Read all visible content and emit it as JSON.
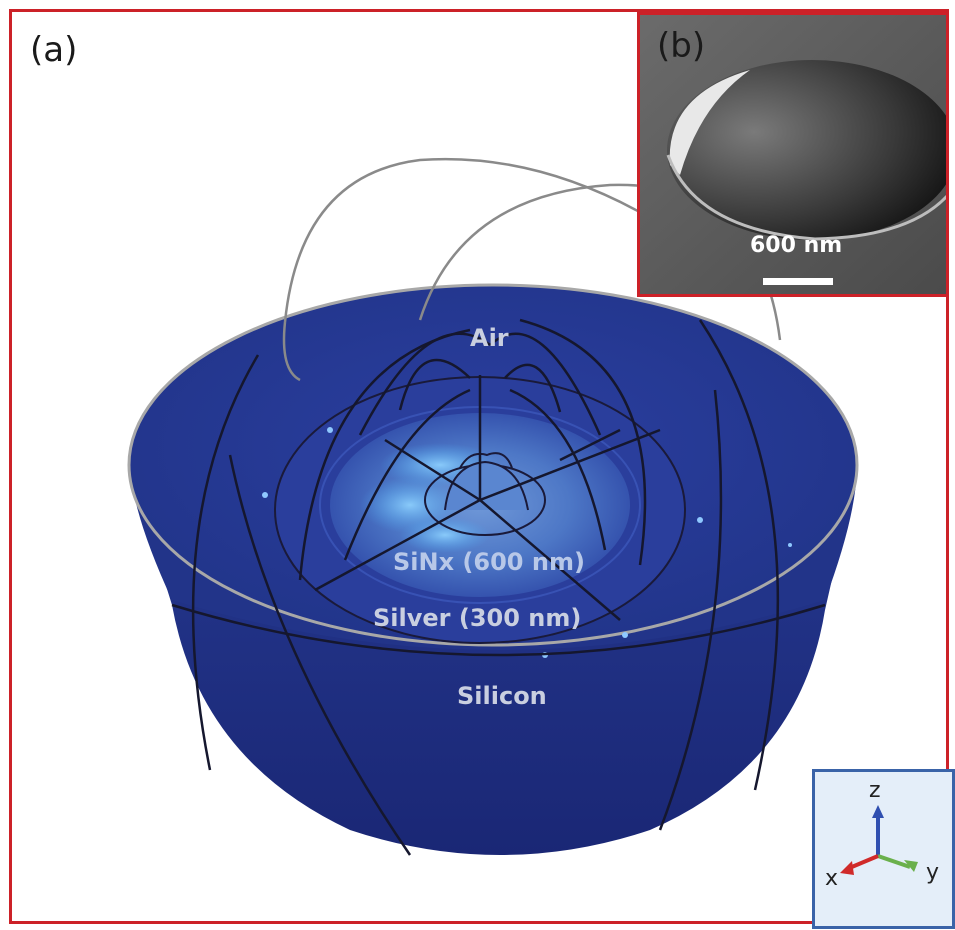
{
  "panels": {
    "a_label": "(a)",
    "b_label": "(b)"
  },
  "layers": {
    "air": "Air",
    "sinx": "SiNx (600 nm)",
    "silver": "Silver (300  nm)",
    "silicon": "Silicon"
  },
  "inset": {
    "scale_bar_label": "600 nm"
  },
  "axes": {
    "z": "z",
    "y": "y",
    "x": "x"
  },
  "colors": {
    "frame": "#cc2128",
    "body_dark": "#1c2a7e",
    "field_light": "#4fa8ef",
    "axis_box_border": "#3a63a8",
    "axis_z": "#2f4fb0",
    "axis_y": "#6ab04c",
    "axis_x": "#d02a2a"
  }
}
